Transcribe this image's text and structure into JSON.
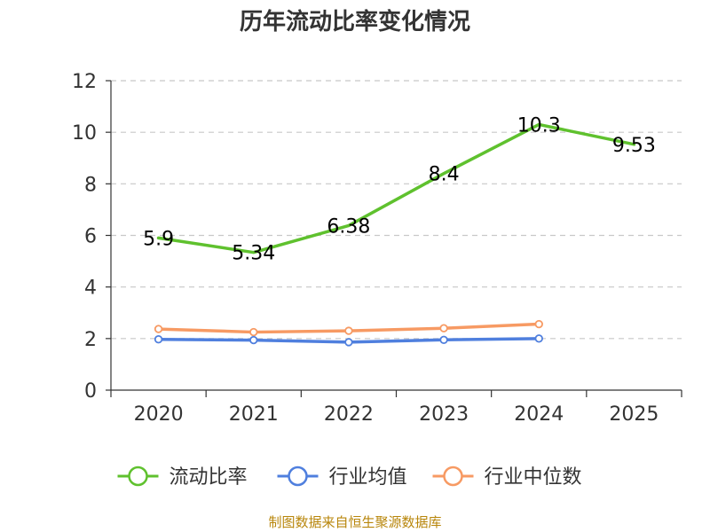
{
  "chart_data": {
    "type": "line",
    "title": "历年流动比率变化情况",
    "categories": [
      "2020",
      "2021",
      "2022",
      "2023",
      "2024",
      "2025"
    ],
    "ylim": [
      0,
      12
    ],
    "yticks": [
      0,
      2,
      4,
      6,
      8,
      10,
      12
    ],
    "grid": true,
    "legend_position": "bottom",
    "series": [
      {
        "name": "流动比率",
        "color": "#5fc12e",
        "values": [
          5.9,
          5.34,
          6.38,
          8.4,
          10.3,
          9.53
        ],
        "labels": [
          "5.9",
          "5.34",
          "6.38",
          "8.4",
          "10.3",
          "9.53"
        ],
        "show_labels": true,
        "show_markers": false
      },
      {
        "name": "行业均值",
        "color": "#4f7fde",
        "values": [
          1.97,
          1.94,
          1.86,
          1.95,
          2.0,
          null
        ],
        "show_labels": false,
        "show_markers": true
      },
      {
        "name": "行业中位数",
        "color": "#f79a63",
        "values": [
          2.37,
          2.25,
          2.3,
          2.4,
          2.56,
          null
        ],
        "show_labels": false,
        "show_markers": true
      }
    ]
  },
  "footer": {
    "source": "制图数据来自恒生聚源数据库"
  }
}
